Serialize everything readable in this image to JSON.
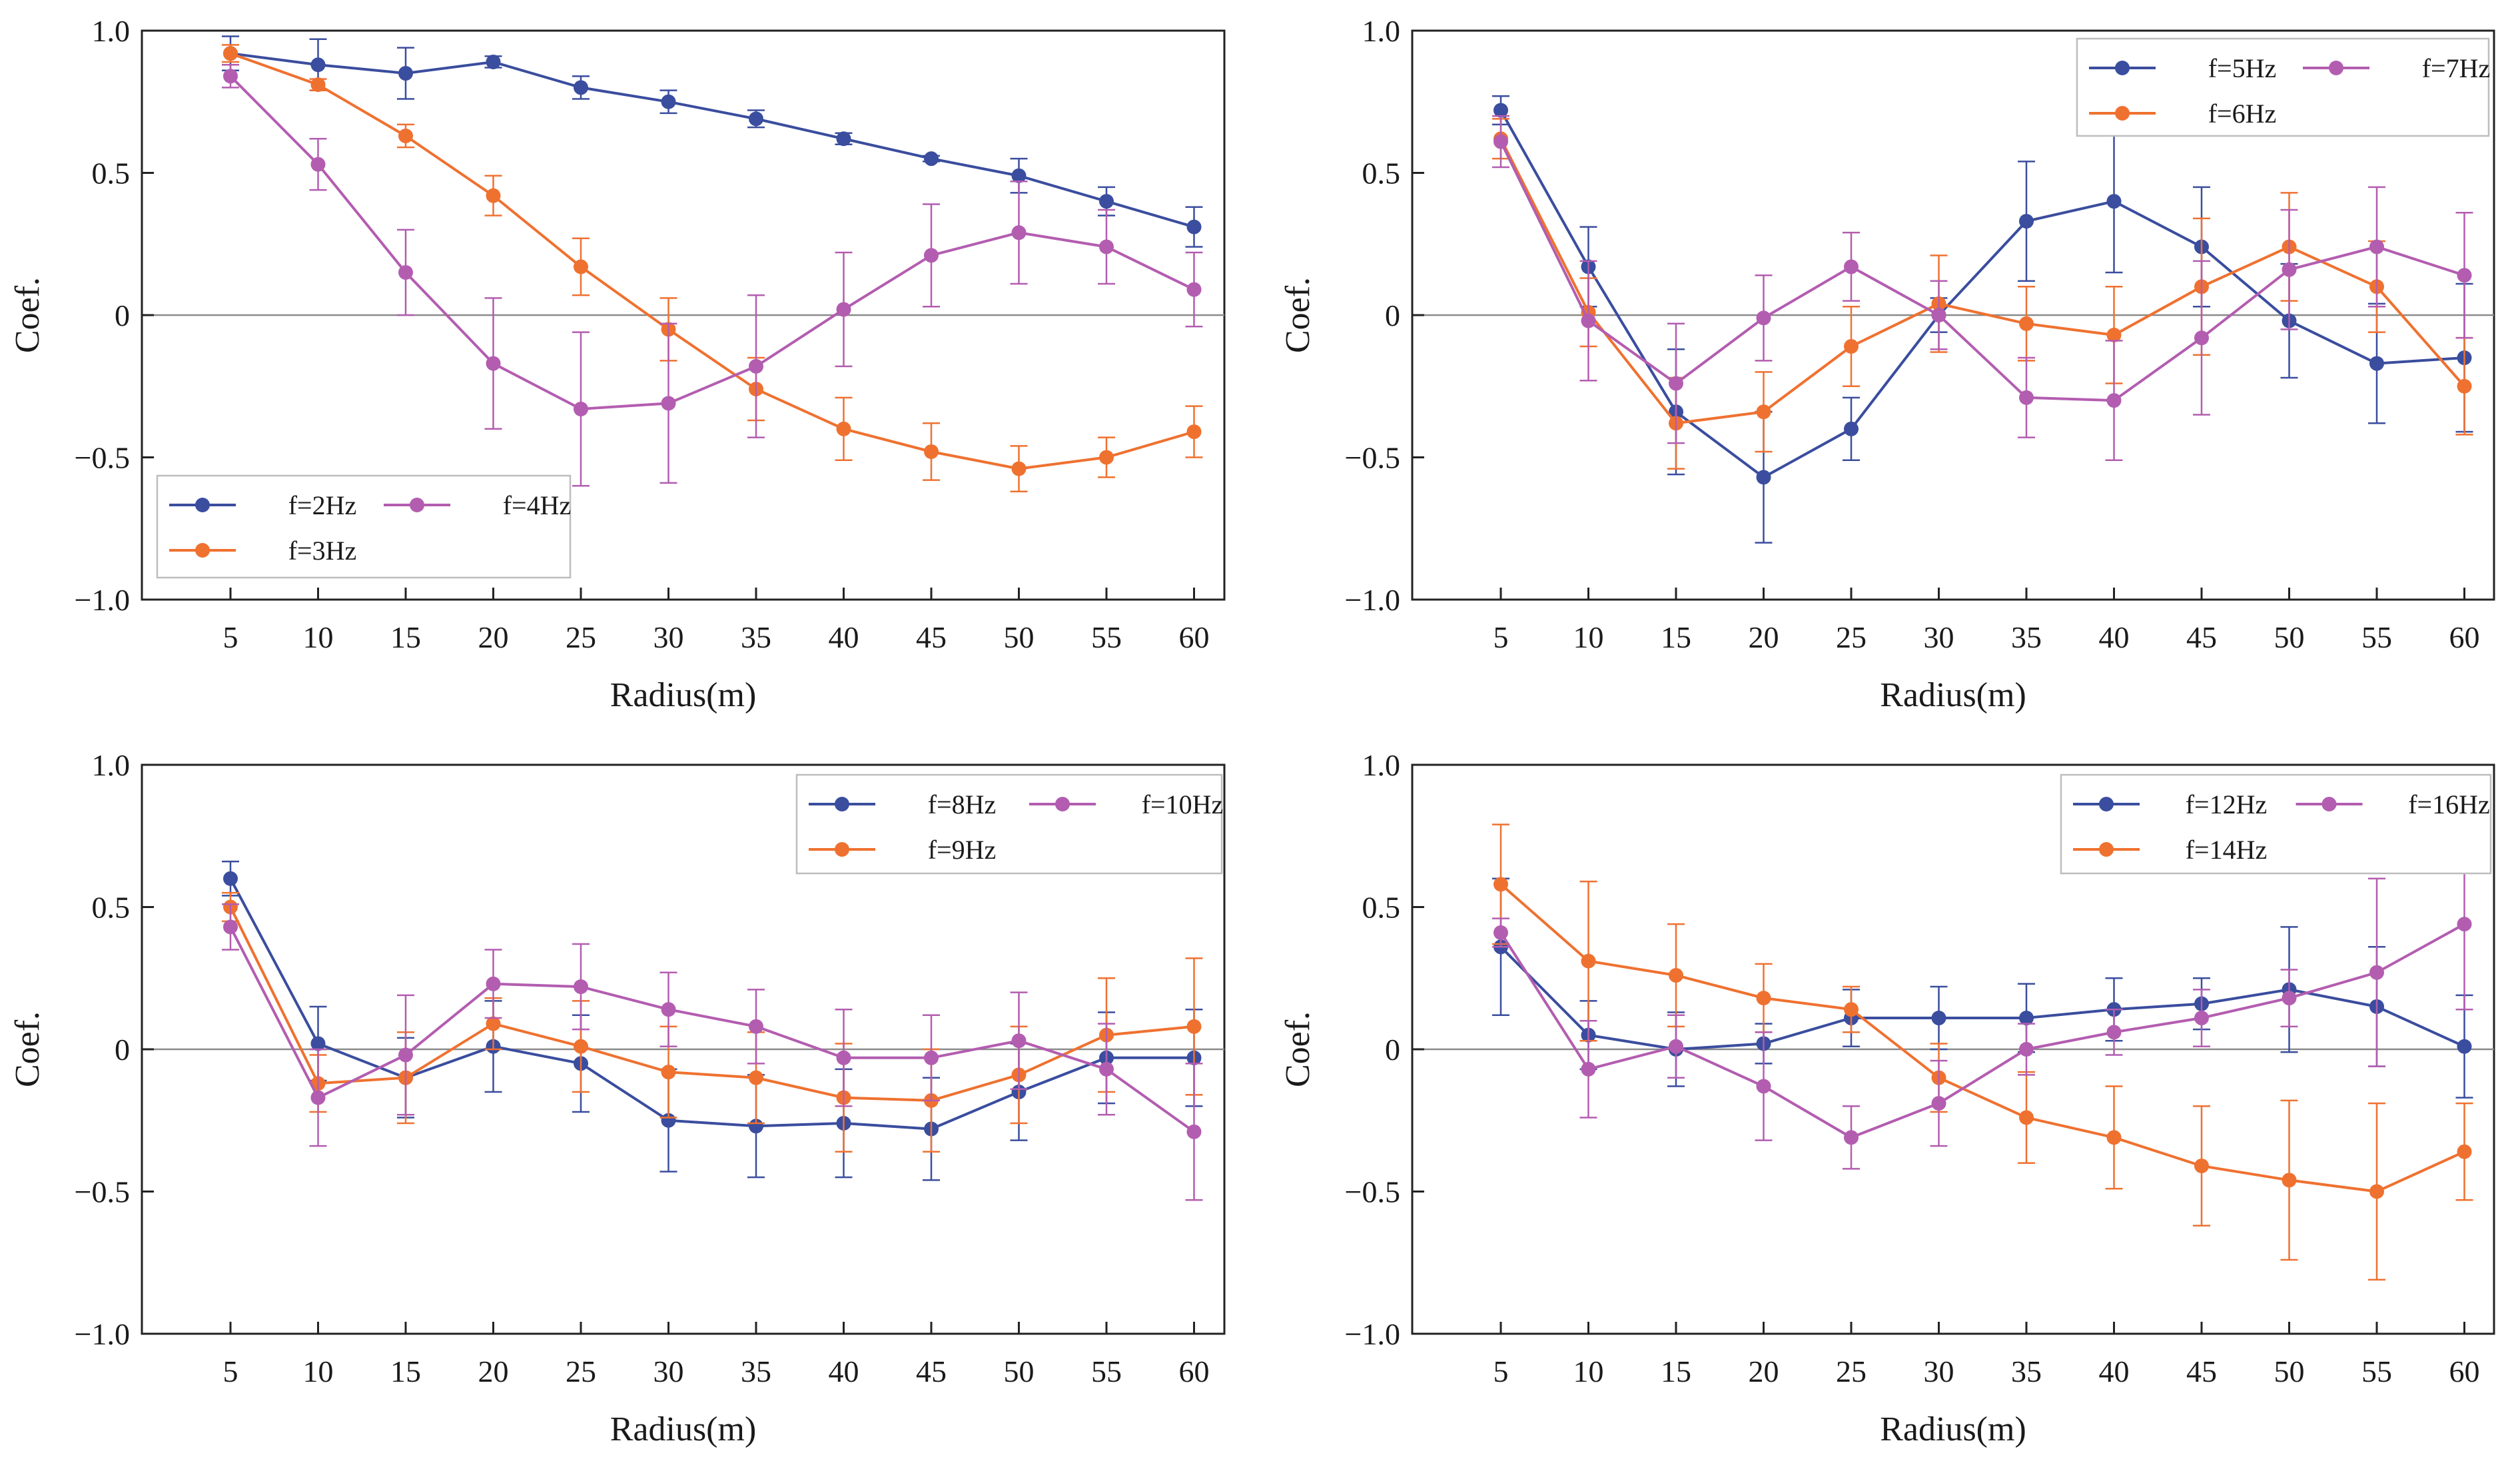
{
  "colors": {
    "blue": "#3a4d9e",
    "orange": "#ef7130",
    "magenta": "#b35db0"
  },
  "chart_data": [
    {
      "type": "line",
      "xlabel": "Radius(m)",
      "ylabel": "Coef.",
      "x": [
        5,
        10,
        15,
        20,
        25,
        30,
        35,
        40,
        45,
        50,
        55,
        60
      ],
      "x_tick_labels": [
        "5",
        "10",
        "15",
        "20",
        "25",
        "30",
        "35",
        "40",
        "45",
        "50",
        "55",
        "60"
      ],
      "ylim": [
        -1.0,
        1.0
      ],
      "y_ticks": [
        -1.0,
        -0.5,
        0,
        0.5,
        1.0
      ],
      "y_tick_labels": [
        "−1.0",
        "−0.5",
        "0",
        "0.5",
        "1.0"
      ],
      "legend_location": "bottom-left",
      "series": [
        {
          "name": "f=2Hz",
          "color": "#3a4d9e",
          "values": [
            0.92,
            0.88,
            0.85,
            0.89,
            0.8,
            0.75,
            0.69,
            0.62,
            0.55,
            0.49,
            0.4,
            0.31
          ],
          "errors": [
            0.06,
            0.09,
            0.09,
            0.02,
            0.04,
            0.04,
            0.03,
            0.02,
            0.01,
            0.06,
            0.05,
            0.07
          ]
        },
        {
          "name": "f=3Hz",
          "color": "#ef7130",
          "values": [
            0.92,
            0.81,
            0.63,
            0.42,
            0.17,
            -0.05,
            -0.26,
            -0.4,
            -0.48,
            -0.54,
            -0.5,
            -0.41
          ],
          "errors": [
            0.03,
            0.02,
            0.04,
            0.07,
            0.1,
            0.11,
            0.11,
            0.11,
            0.1,
            0.08,
            0.07,
            0.09
          ]
        },
        {
          "name": "f=4Hz",
          "color": "#b35db0",
          "values": [
            0.84,
            0.53,
            0.15,
            -0.17,
            -0.33,
            -0.31,
            -0.18,
            0.02,
            0.21,
            0.29,
            0.24,
            0.09
          ],
          "errors": [
            0.04,
            0.09,
            0.15,
            0.23,
            0.27,
            0.28,
            0.25,
            0.2,
            0.18,
            0.18,
            0.13,
            0.13
          ]
        }
      ]
    },
    {
      "type": "line",
      "xlabel": "Radius(m)",
      "ylabel": "Coef.",
      "x": [
        5,
        10,
        15,
        20,
        25,
        30,
        35,
        40,
        45,
        50,
        55,
        60
      ],
      "x_tick_labels": [
        "5",
        "10",
        "15",
        "20",
        "25",
        "30",
        "35",
        "40",
        "45",
        "50",
        "55",
        "60"
      ],
      "ylim": [
        -1.0,
        1.0
      ],
      "y_ticks": [
        -1.0,
        -0.5,
        0,
        0.5,
        1.0
      ],
      "y_tick_labels": [
        "−1.0",
        "−0.5",
        "0",
        "0.5",
        "1.0"
      ],
      "legend_location": "top-right",
      "series": [
        {
          "name": "f=5Hz",
          "color": "#3a4d9e",
          "values": [
            0.72,
            0.17,
            -0.34,
            -0.57,
            -0.4,
            0.0,
            0.33,
            0.4,
            0.24,
            -0.02,
            -0.17,
            -0.15
          ],
          "errors": [
            0.05,
            0.14,
            0.22,
            0.23,
            0.11,
            0.06,
            0.21,
            0.25,
            0.21,
            0.2,
            0.21,
            0.26
          ]
        },
        {
          "name": "f=6Hz",
          "color": "#ef7130",
          "values": [
            0.62,
            0.01,
            -0.38,
            -0.34,
            -0.11,
            0.04,
            -0.03,
            -0.07,
            0.1,
            0.24,
            0.1,
            -0.25
          ],
          "errors": [
            0.07,
            0.12,
            0.16,
            0.14,
            0.14,
            0.17,
            0.13,
            0.17,
            0.24,
            0.19,
            0.16,
            0.17
          ]
        },
        {
          "name": "f=7Hz",
          "color": "#b35db0",
          "values": [
            0.61,
            -0.02,
            -0.24,
            -0.01,
            0.17,
            0.0,
            -0.29,
            -0.3,
            -0.08,
            0.16,
            0.24,
            0.14
          ],
          "errors": [
            0.09,
            0.21,
            0.21,
            0.15,
            0.12,
            0.12,
            0.14,
            0.21,
            0.27,
            0.21,
            0.21,
            0.22
          ]
        }
      ]
    },
    {
      "type": "line",
      "xlabel": "Radius(m)",
      "ylabel": "Coef.",
      "x": [
        5,
        10,
        15,
        20,
        25,
        30,
        35,
        40,
        45,
        50,
        55,
        60
      ],
      "x_tick_labels": [
        "5",
        "10",
        "15",
        "20",
        "25",
        "30",
        "35",
        "40",
        "45",
        "50",
        "55",
        "60"
      ],
      "ylim": [
        -1.0,
        1.0
      ],
      "y_ticks": [
        -1.0,
        -0.5,
        0,
        0.5,
        1.0
      ],
      "y_tick_labels": [
        "−1.0",
        "−0.5",
        "0",
        "0.5",
        "1.0"
      ],
      "legend_location": "top-right",
      "series": [
        {
          "name": "f=8Hz",
          "color": "#3a4d9e",
          "values": [
            0.6,
            0.02,
            -0.1,
            0.01,
            -0.05,
            -0.25,
            -0.27,
            -0.26,
            -0.28,
            -0.15,
            -0.03,
            -0.03
          ],
          "errors": [
            0.06,
            0.13,
            0.14,
            0.16,
            0.17,
            0.18,
            0.18,
            0.19,
            0.18,
            0.17,
            0.16,
            0.17
          ]
        },
        {
          "name": "f=9Hz",
          "color": "#ef7130",
          "values": [
            0.5,
            -0.12,
            -0.1,
            0.09,
            0.01,
            -0.08,
            -0.1,
            -0.17,
            -0.18,
            -0.09,
            0.05,
            0.08
          ],
          "errors": [
            0.05,
            0.1,
            0.16,
            0.09,
            0.16,
            0.16,
            0.16,
            0.19,
            0.18,
            0.17,
            0.2,
            0.24
          ]
        },
        {
          "name": "f=10Hz",
          "color": "#b35db0",
          "values": [
            0.43,
            -0.17,
            -0.02,
            0.23,
            0.22,
            0.14,
            0.08,
            -0.03,
            -0.03,
            0.03,
            -0.07,
            -0.29
          ],
          "errors": [
            0.08,
            0.17,
            0.21,
            0.12,
            0.15,
            0.13,
            0.13,
            0.17,
            0.15,
            0.17,
            0.16,
            0.24
          ]
        }
      ]
    },
    {
      "type": "line",
      "xlabel": "Radius(m)",
      "ylabel": "Coef.",
      "x": [
        5,
        10,
        15,
        20,
        25,
        30,
        35,
        40,
        45,
        50,
        55,
        60
      ],
      "x_tick_labels": [
        "5",
        "10",
        "15",
        "20",
        "25",
        "30",
        "35",
        "40",
        "45",
        "50",
        "55",
        "60"
      ],
      "ylim": [
        -1.0,
        1.0
      ],
      "y_ticks": [
        -1.0,
        -0.5,
        0,
        0.5,
        1.0
      ],
      "y_tick_labels": [
        "−1.0",
        "−0.5",
        "0",
        "0.5",
        "1.0"
      ],
      "legend_location": "top-right",
      "series": [
        {
          "name": "f=12Hz",
          "color": "#3a4d9e",
          "values": [
            0.36,
            0.05,
            0.0,
            0.02,
            0.11,
            0.11,
            0.11,
            0.14,
            0.16,
            0.21,
            0.15,
            0.01
          ],
          "errors": [
            0.24,
            0.12,
            0.13,
            0.07,
            0.1,
            0.11,
            0.12,
            0.11,
            0.09,
            0.22,
            0.21,
            0.18
          ]
        },
        {
          "name": "f=14Hz",
          "color": "#ef7130",
          "values": [
            0.58,
            0.31,
            0.26,
            0.18,
            0.14,
            -0.1,
            -0.24,
            -0.31,
            -0.41,
            -0.46,
            -0.5,
            -0.36
          ],
          "errors": [
            0.21,
            0.28,
            0.18,
            0.12,
            0.08,
            0.12,
            0.16,
            0.18,
            0.21,
            0.28,
            0.31,
            0.17
          ]
        },
        {
          "name": "f=16Hz",
          "color": "#b35db0",
          "values": [
            0.41,
            -0.07,
            0.01,
            -0.13,
            -0.31,
            -0.19,
            0.0,
            0.06,
            0.11,
            0.18,
            0.27,
            0.44
          ],
          "errors": [
            0.05,
            0.17,
            0.11,
            0.19,
            0.11,
            0.15,
            0.09,
            0.08,
            0.1,
            0.1,
            0.33,
            0.3
          ]
        }
      ]
    }
  ]
}
